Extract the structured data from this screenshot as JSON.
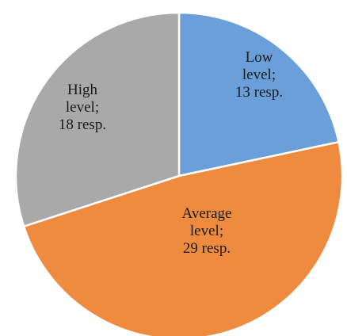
{
  "chart_data": {
    "type": "pie",
    "title": "",
    "series": [
      {
        "name": "",
        "slices": [
          {
            "category": "Low level",
            "value": 13,
            "unit": "resp.",
            "color": "#6A9FDA",
            "label_lines": [
              "Low",
              "level;",
              "13 resp."
            ]
          },
          {
            "category": "Average level",
            "value": 29,
            "unit": "resp.",
            "color": "#EE8B3F",
            "label_lines": [
              "Average",
              "level;",
              "29 resp."
            ]
          },
          {
            "category": "High level",
            "value": 18,
            "unit": "resp.",
            "color": "#A9A9A9",
            "label_lines": [
              "High",
              "level;",
              "18 resp."
            ]
          }
        ]
      }
    ],
    "start_angle_deg": 0,
    "direction": "clockwise",
    "border_color": "#ffffff",
    "legend": "none"
  }
}
